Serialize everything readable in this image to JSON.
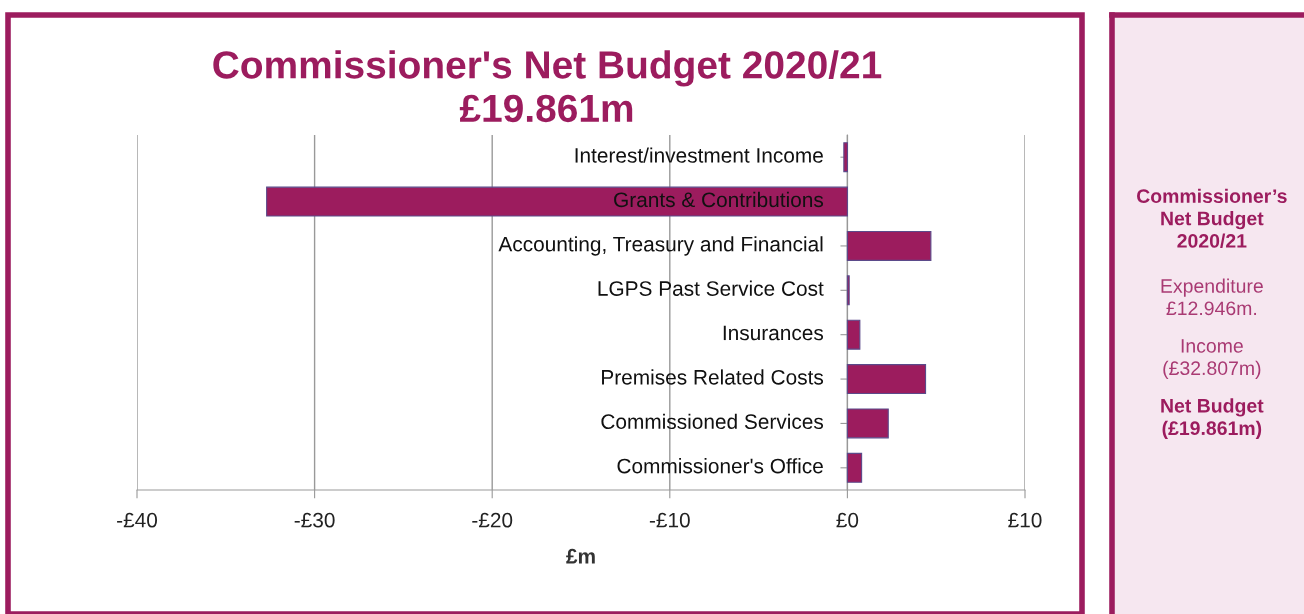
{
  "chart_data": [
    {
      "type": "bar",
      "orientation": "horizontal",
      "title": "Commissioner's Net Budget 2020/21\n£19.861m",
      "xlabel": "£m",
      "categories": [
        "Interest/investment Income",
        "Grants & Contributions",
        "Accounting, Treasury and Financial",
        "LGPS Past Service Cost",
        "Insurances",
        "Premises Related Costs",
        "Commissioned Services",
        "Commissioner's Office"
      ],
      "values": [
        -0.2,
        -32.7,
        4.7,
        0.1,
        0.7,
        4.4,
        2.3,
        0.8
      ],
      "color": "#9c1c5e",
      "xlim": [
        -40,
        10
      ],
      "xticks": [
        {
          "value": -40,
          "label": "-£40"
        },
        {
          "value": -30,
          "label": "-£30"
        },
        {
          "value": -20,
          "label": "-£20"
        },
        {
          "value": -10,
          "label": "-£10"
        },
        {
          "value": 0,
          "label": "£0"
        },
        {
          "value": 10,
          "label": "£10"
        }
      ],
      "grid": "x"
    },
    {
      "type": "other",
      "title": "Commissioner’s\nNet Budget\n2020/21",
      "annotations": [
        "Expenditure\n£12.946m.",
        "Income\n(£32.807m)",
        "Net Budget\n(£19.861m)"
      ]
    }
  ]
}
